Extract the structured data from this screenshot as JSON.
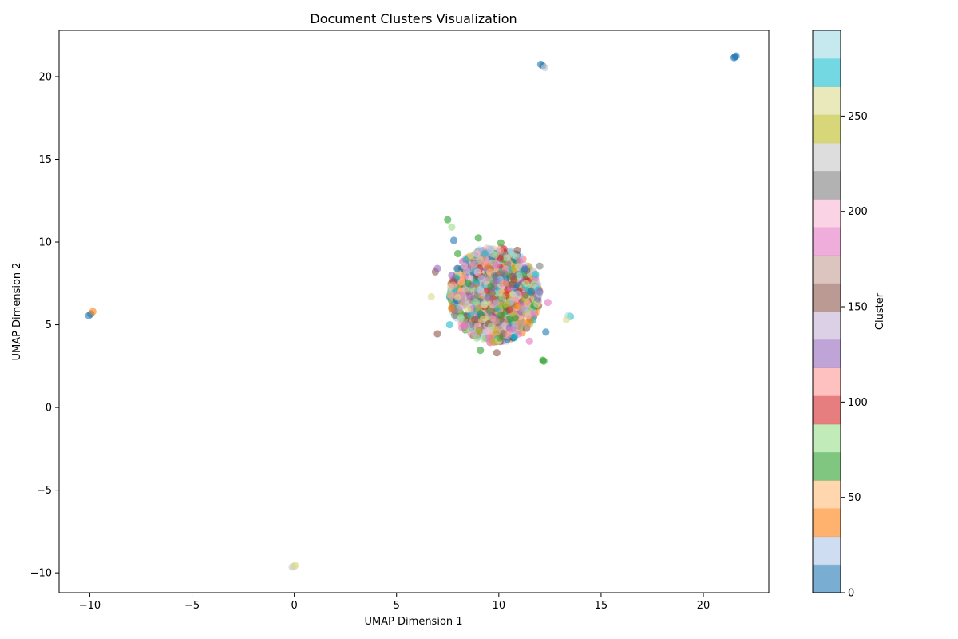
{
  "chart_data": {
    "type": "scatter",
    "title": "Document Clusters Visualization",
    "xlabel": "UMAP Dimension 1",
    "ylabel": "UMAP Dimension 2",
    "xlim": [
      -11.5,
      23.2
    ],
    "ylim": [
      -11.2,
      22.8
    ],
    "xticks": [
      -10,
      -5,
      0,
      5,
      10,
      15,
      20
    ],
    "yticks": [
      -10,
      -5,
      0,
      5,
      10,
      15,
      20
    ],
    "x_tick_labels": [
      "−10",
      "−5",
      "0",
      "5",
      "10",
      "15",
      "20"
    ],
    "y_tick_labels": [
      "−10",
      "−5",
      "0",
      "5",
      "10",
      "15",
      "20"
    ],
    "grid": false,
    "point_alpha": 0.6,
    "colorbar": {
      "label": "Cluster",
      "range": [
        0,
        295
      ],
      "ticks": [
        0,
        50,
        100,
        150,
        200,
        250
      ],
      "tick_labels": [
        "0",
        "50",
        "100",
        "150",
        "200",
        "250"
      ],
      "colormap": "tab20",
      "colors": [
        "#1f77b4",
        "#aec7e8",
        "#ff7f0e",
        "#ffbb78",
        "#2ca02c",
        "#98df8a",
        "#d62728",
        "#ff9896",
        "#9467bd",
        "#c5b0d5",
        "#8c564b",
        "#c49c94",
        "#e377c2",
        "#f7b6d2",
        "#7f7f7f",
        "#c7c7c7",
        "#bcbd22",
        "#dbdb8d",
        "#17becf",
        "#9edae5"
      ]
    },
    "points": [
      {
        "x": 21.55,
        "y": 21.2,
        "cluster": 0
      },
      {
        "x": 21.6,
        "y": 21.25,
        "cluster": 2
      },
      {
        "x": 21.5,
        "y": 21.15,
        "cluster": 5
      },
      {
        "x": 12.05,
        "y": 20.75,
        "cluster": 0
      },
      {
        "x": 12.15,
        "y": 20.65,
        "cluster": 8
      },
      {
        "x": 12.25,
        "y": 20.55,
        "cluster": 222
      },
      {
        "x": -10.05,
        "y": 5.55,
        "cluster": 0
      },
      {
        "x": -9.95,
        "y": 5.65,
        "cluster": 4
      },
      {
        "x": -9.85,
        "y": 5.8,
        "cluster": 35
      },
      {
        "x": 0.0,
        "y": -9.6,
        "cluster": 255
      },
      {
        "x": -0.1,
        "y": -9.65,
        "cluster": 222
      },
      {
        "x": 0.05,
        "y": -9.55,
        "cluster": 260
      },
      {
        "x": 12.2,
        "y": 2.8,
        "cluster": 65
      },
      {
        "x": 12.15,
        "y": 2.85,
        "cluster": 70
      },
      {
        "x": 7.5,
        "y": 11.35,
        "cluster": 65
      },
      {
        "x": 7.7,
        "y": 10.9,
        "cluster": 85
      },
      {
        "x": 13.5,
        "y": 5.5,
        "cluster": 280
      },
      {
        "x": 13.4,
        "y": 5.55,
        "cluster": 295
      },
      {
        "x": 13.3,
        "y": 5.3,
        "cluster": 255
      },
      {
        "x": 6.7,
        "y": 6.7,
        "cluster": 260
      },
      {
        "x": 6.9,
        "y": 8.2,
        "cluster": 155
      },
      {
        "x": 7.0,
        "y": 8.4,
        "cluster": 130
      },
      {
        "x": 7.8,
        "y": 10.1,
        "cluster": 5
      },
      {
        "x": 9.0,
        "y": 10.25,
        "cluster": 65
      },
      {
        "x": 10.1,
        "y": 9.95,
        "cluster": 70
      },
      {
        "x": 12.0,
        "y": 8.55,
        "cluster": 220
      },
      {
        "x": 11.8,
        "y": 8.05,
        "cluster": 280
      },
      {
        "x": 12.4,
        "y": 6.35,
        "cluster": 185
      },
      {
        "x": 12.3,
        "y": 4.55,
        "cluster": 5
      },
      {
        "x": 7.0,
        "y": 4.45,
        "cluster": 150
      },
      {
        "x": 9.1,
        "y": 3.45,
        "cluster": 65
      },
      {
        "x": 9.9,
        "y": 3.3,
        "cluster": 160
      },
      {
        "x": 11.5,
        "y": 4.0,
        "cluster": 190
      },
      {
        "x": 8.0,
        "y": 9.3,
        "cluster": 70
      },
      {
        "x": 10.9,
        "y": 9.5,
        "cluster": 150
      },
      {
        "x": 11.3,
        "y": 6.8,
        "cluster": 155
      },
      {
        "x": 8.5,
        "y": 7.5,
        "cluster": 65
      },
      {
        "x": 10.5,
        "y": 5.9,
        "cluster": 95
      },
      {
        "x": 7.6,
        "y": 5.0,
        "cluster": 270
      },
      {
        "x": 11.6,
        "y": 7.0,
        "cluster": 5
      },
      {
        "x": 12.0,
        "y": 7.0,
        "cluster": 130
      },
      {
        "x": 7.7,
        "y": 8.0,
        "cluster": 125
      },
      {
        "x": 9.3,
        "y": 6.2,
        "cluster": 260
      }
    ],
    "cloud": {
      "center": [
        9.8,
        6.8
      ],
      "radius": [
        2.2,
        2.9
      ],
      "count": 1250
    }
  }
}
